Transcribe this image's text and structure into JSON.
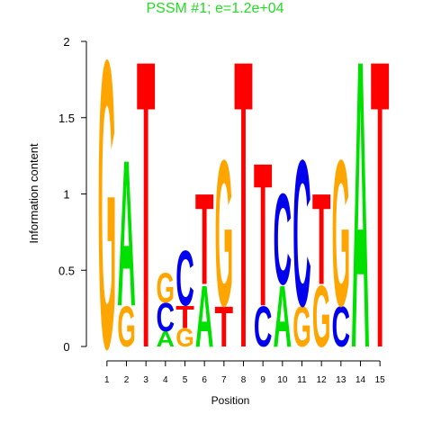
{
  "chart_data": {
    "type": "logo",
    "title": "PSSM #1; e=1.2e+04",
    "xlabel": "Position",
    "ylabel": "Information content",
    "xlim": [
      0.5,
      15.5
    ],
    "xticks": [
      1,
      2,
      3,
      4,
      5,
      6,
      7,
      8,
      9,
      10,
      11,
      12,
      13,
      14,
      15
    ],
    "ylim": [
      0,
      2
    ],
    "yticks": [
      0,
      0.5,
      1,
      1.5,
      2
    ],
    "letter_colors": {
      "A": "#00e000",
      "C": "#0000ee",
      "G": "#ffa500",
      "T": "#ff0000"
    },
    "stacks": [
      [
        {
          "letter": "G",
          "value": 1.93
        }
      ],
      [
        {
          "letter": "G",
          "value": 0.27
        },
        {
          "letter": "A",
          "value": 0.98
        }
      ],
      [
        {
          "letter": "T",
          "value": 1.93
        }
      ],
      [
        {
          "letter": "A",
          "value": 0.1
        },
        {
          "letter": "C",
          "value": 0.19
        },
        {
          "letter": "G",
          "value": 0.2
        }
      ],
      [
        {
          "letter": "G",
          "value": 0.12
        },
        {
          "letter": "T",
          "value": 0.15
        },
        {
          "letter": "C",
          "value": 0.37
        }
      ],
      [
        {
          "letter": "A",
          "value": 0.41
        },
        {
          "letter": "T",
          "value": 0.61
        }
      ],
      [
        {
          "letter": "T",
          "value": 0.27
        },
        {
          "letter": "G",
          "value": 0.98
        }
      ],
      [
        {
          "letter": "T",
          "value": 1.93
        }
      ],
      [
        {
          "letter": "C",
          "value": 0.27
        },
        {
          "letter": "T",
          "value": 0.96
        }
      ],
      [
        {
          "letter": "A",
          "value": 0.41
        },
        {
          "letter": "C",
          "value": 0.61
        }
      ],
      [
        {
          "letter": "G",
          "value": 0.27
        },
        {
          "letter": "C",
          "value": 0.98
        }
      ],
      [
        {
          "letter": "G",
          "value": 0.41
        },
        {
          "letter": "T",
          "value": 0.61
        }
      ],
      [
        {
          "letter": "C",
          "value": 0.27
        },
        {
          "letter": "G",
          "value": 0.98
        }
      ],
      [
        {
          "letter": "A",
          "value": 1.93
        }
      ],
      [
        {
          "letter": "T",
          "value": 1.93
        }
      ]
    ]
  }
}
